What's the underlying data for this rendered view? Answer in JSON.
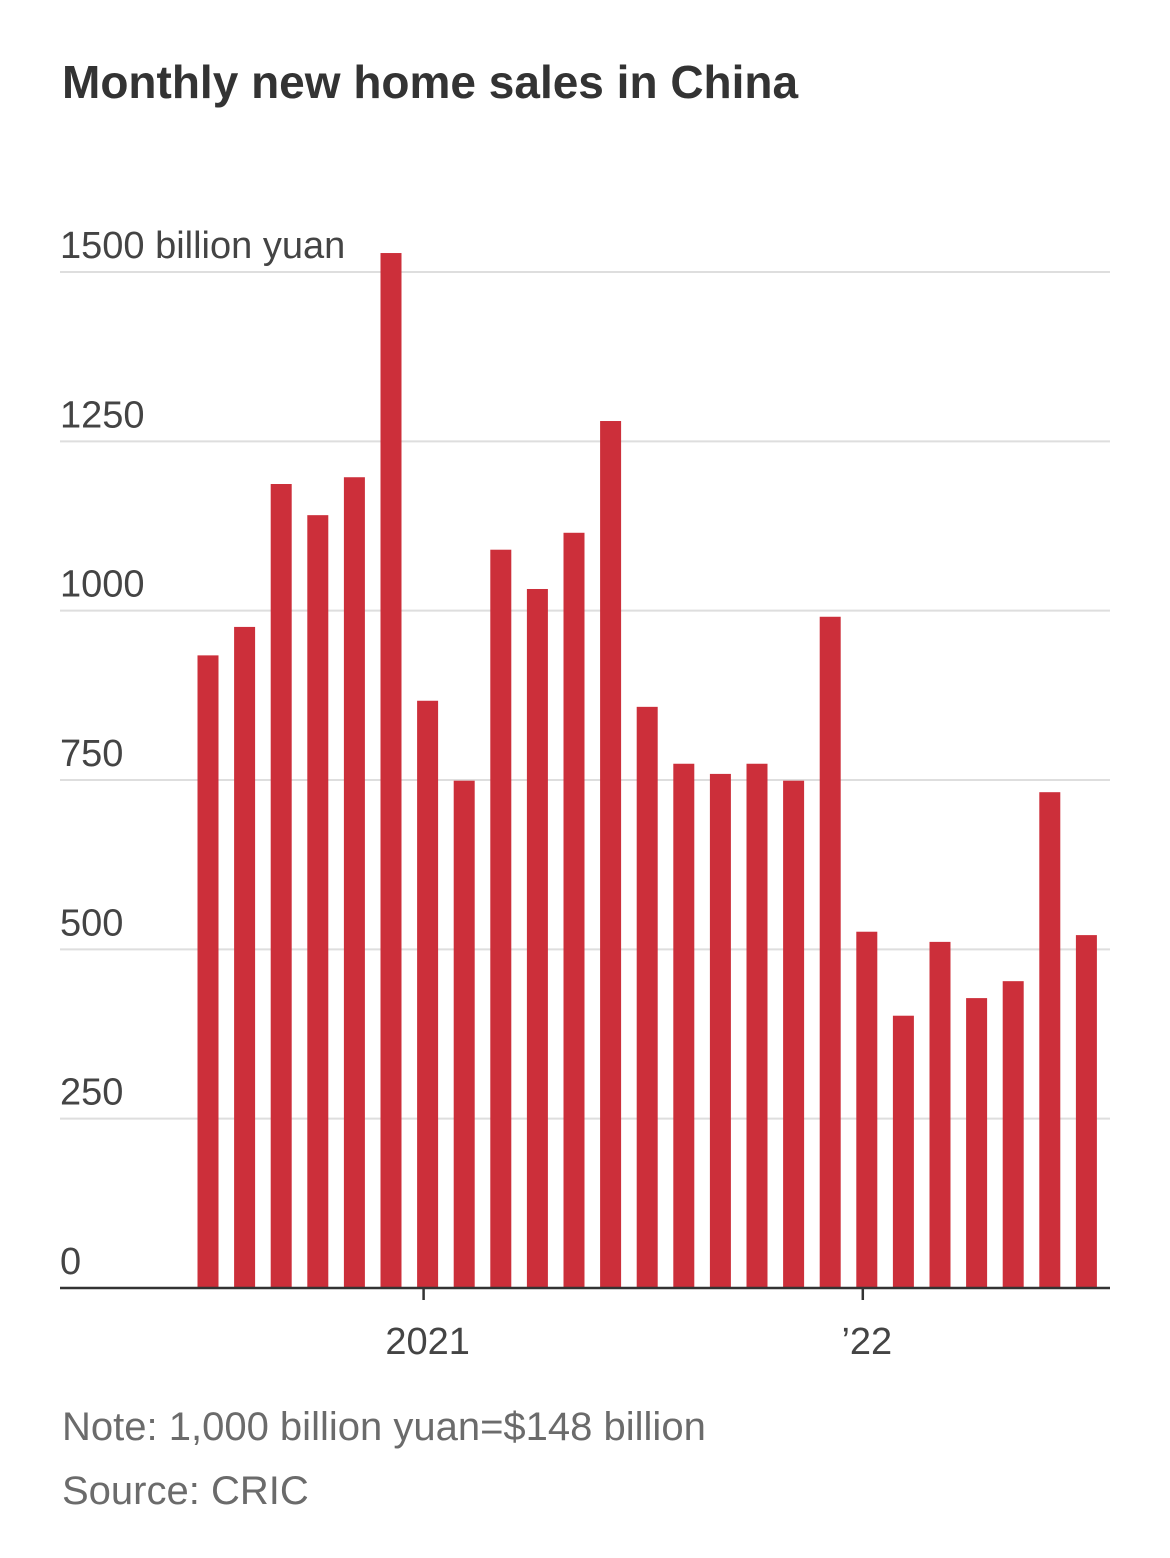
{
  "chart_data": {
    "type": "bar",
    "title": "Monthly new home sales in China",
    "note": "Note: 1,000 billion yuan=$148 billion",
    "source": "Source: CRIC",
    "categories": [
      null,
      null,
      null,
      null,
      null,
      null,
      null,
      null,
      null,
      null,
      null,
      null,
      null,
      null,
      null,
      null,
      null,
      null,
      null,
      null,
      null,
      null,
      null,
      null,
      null
    ],
    "values": [
      934,
      976,
      1187,
      1141,
      1197,
      1528,
      867,
      749,
      1090,
      1032,
      1115,
      1280,
      858,
      774,
      759,
      774,
      749,
      991,
      526,
      402,
      511,
      428,
      453,
      732,
      521
    ],
    "color": "#cc2f3a",
    "ylim": [
      0,
      1500
    ],
    "yticks": [
      0,
      250,
      500,
      750,
      1000,
      1250,
      {
        "value": 1500,
        "label": "1500 billion yuan"
      }
    ],
    "xticks": [
      {
        "value": 6,
        "label": "2021"
      },
      {
        "value": 18,
        "label": "’22"
      }
    ],
    "grid": true
  }
}
